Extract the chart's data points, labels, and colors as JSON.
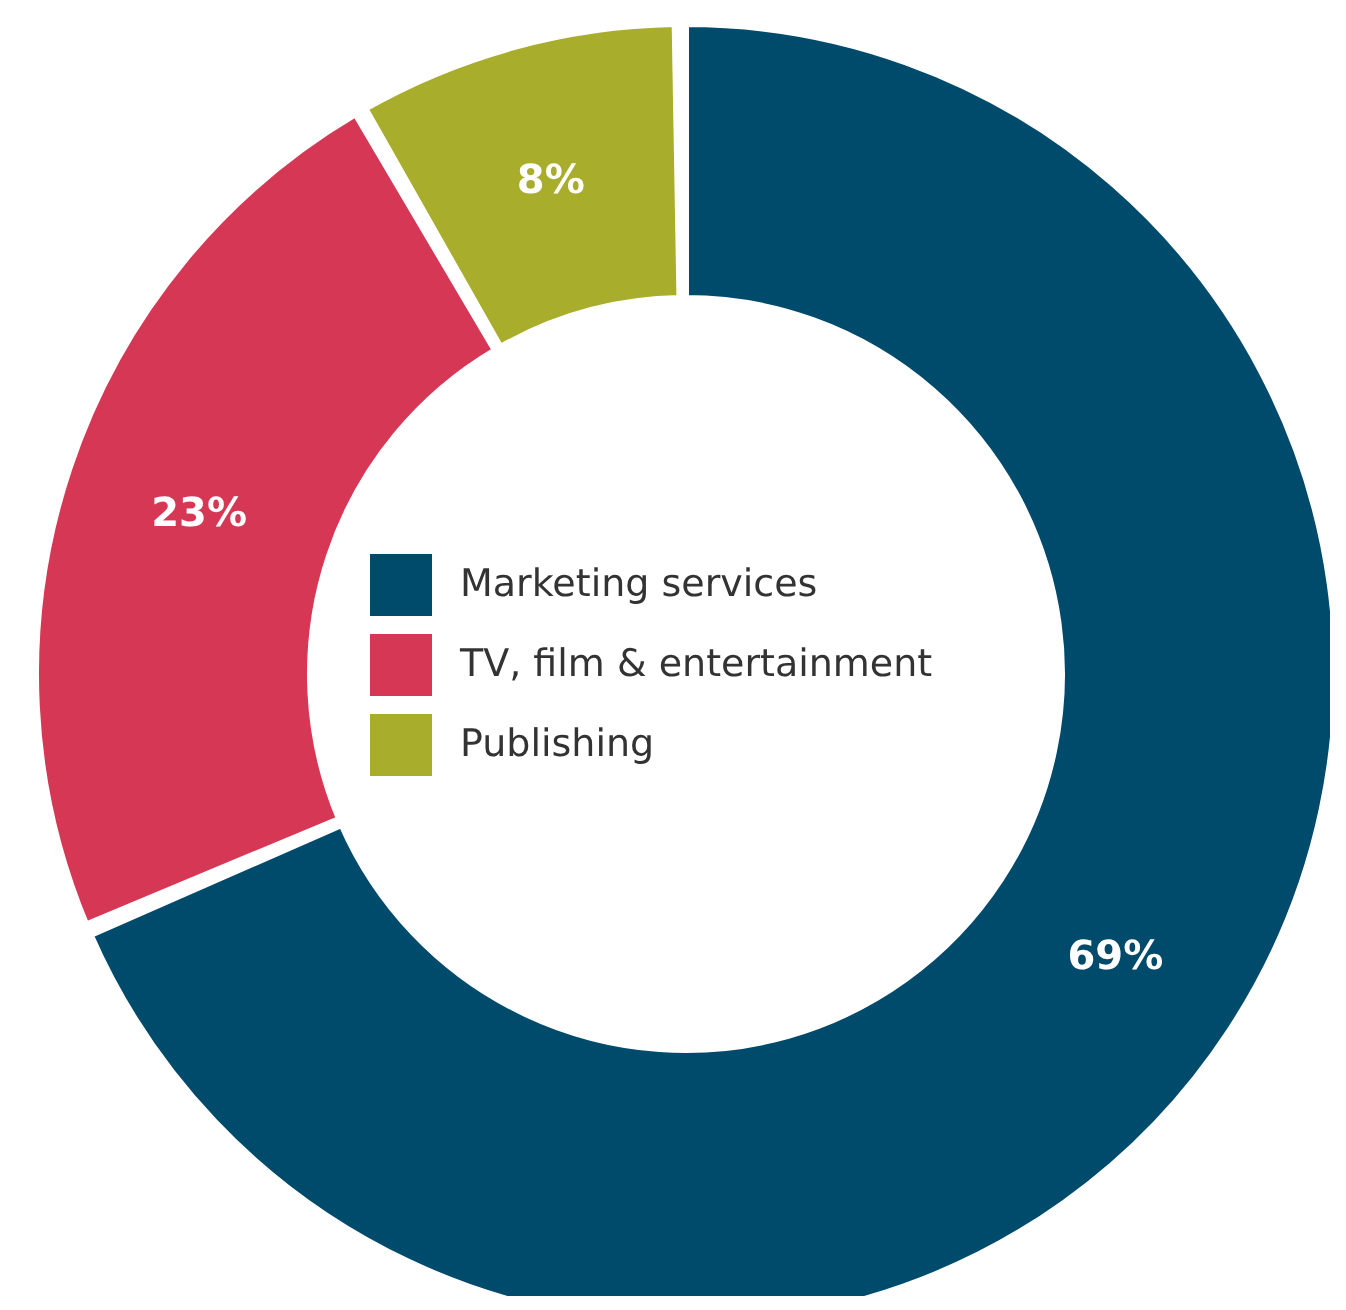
{
  "chart_data": {
    "type": "donut",
    "categories": [
      "Marketing services",
      "TV, film & entertainment",
      "Publishing"
    ],
    "values": [
      69,
      23,
      8
    ],
    "colors": [
      "#004a6b",
      "#d63755",
      "#a8ad2c"
    ],
    "value_labels": [
      "69%",
      "23%",
      "8%"
    ],
    "legend": "center"
  }
}
